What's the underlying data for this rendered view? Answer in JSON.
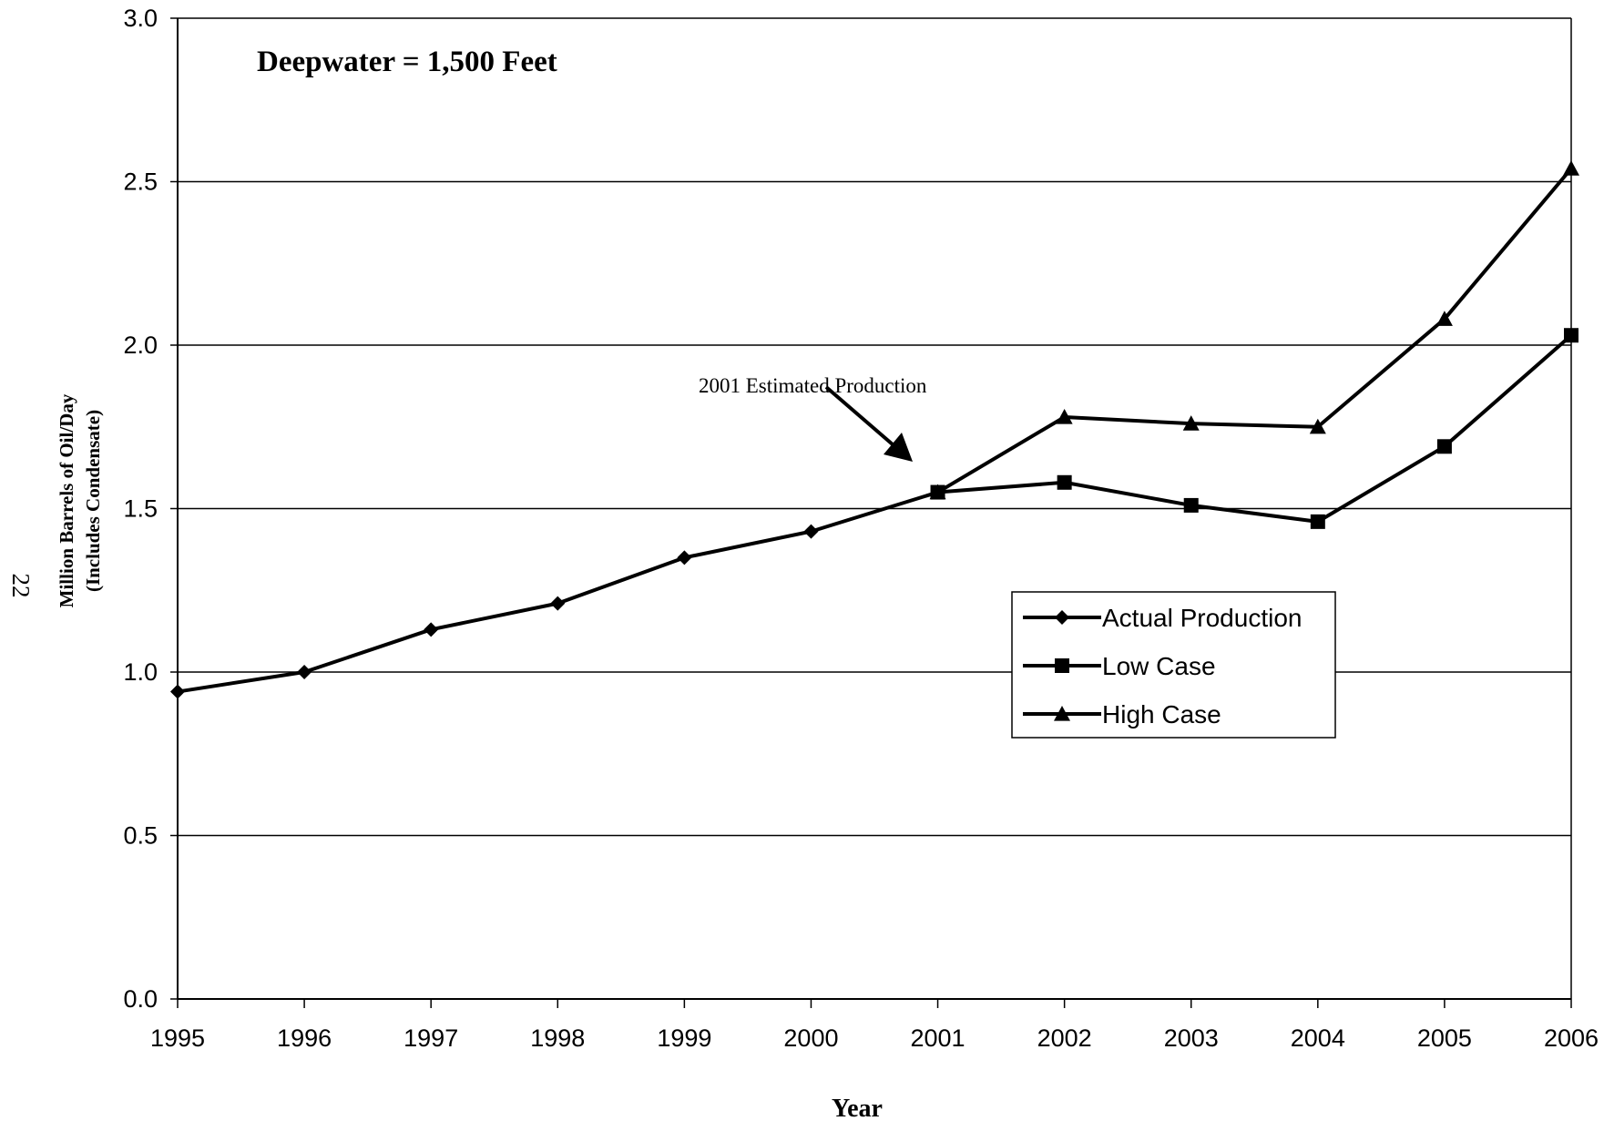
{
  "page_number": "22",
  "chart_data": {
    "type": "line",
    "title": "Deepwater = 1,500 Feet",
    "xlabel": "Year",
    "ylabel": "Million Barrels of Oil/Day",
    "ylabel2": "(Includes Condensate)",
    "x": [
      "1995",
      "1996",
      "1997",
      "1998",
      "1999",
      "2000",
      "2001",
      "2002",
      "2003",
      "2004",
      "2005",
      "2006"
    ],
    "ylim": [
      0,
      3
    ],
    "yticks": [
      "0.0",
      "0.5",
      "1.0",
      "1.5",
      "2.0",
      "2.5",
      "3.0"
    ],
    "grid": true,
    "legend_position": "right-center",
    "series": [
      {
        "name": "Actual Production",
        "marker": "diamond",
        "color": "#000000",
        "x": [
          "1995",
          "1996",
          "1997",
          "1998",
          "1999",
          "2000",
          "2001"
        ],
        "values": [
          0.94,
          1.0,
          1.13,
          1.21,
          1.35,
          1.43,
          1.55
        ]
      },
      {
        "name": "Low  Case",
        "marker": "square",
        "color": "#000000",
        "x": [
          "2001",
          "2002",
          "2003",
          "2004",
          "2005",
          "2006"
        ],
        "values": [
          1.55,
          1.58,
          1.51,
          1.46,
          1.69,
          2.03
        ]
      },
      {
        "name": "High Case",
        "marker": "triangle",
        "color": "#000000",
        "x": [
          "2001",
          "2002",
          "2003",
          "2004",
          "2005",
          "2006"
        ],
        "values": [
          1.55,
          1.78,
          1.76,
          1.75,
          2.08,
          2.54
        ]
      }
    ],
    "annotation": {
      "text": "2001 Estimated Production",
      "points_to": {
        "x": "2001",
        "y": 1.65
      }
    }
  }
}
